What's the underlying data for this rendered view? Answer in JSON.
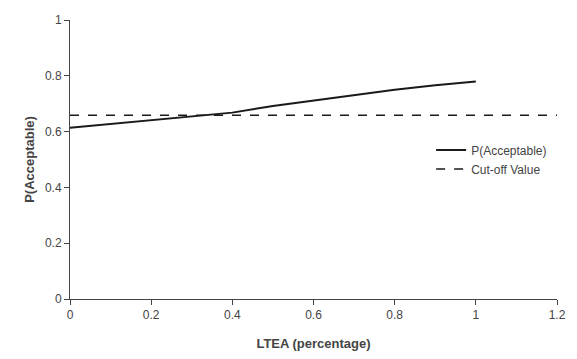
{
  "chart_data": {
    "type": "line",
    "xlabel": "LTEA (percentage)",
    "ylabel": "P(Acceptable)",
    "x": [
      0.0,
      0.1,
      0.2,
      0.3,
      0.4,
      0.5,
      0.6,
      0.7,
      0.8,
      0.9,
      1.0
    ],
    "series": [
      {
        "name": "P(Acceptable)",
        "color": "#1a1a1a",
        "line_style": "solid",
        "values": [
          0.614,
          0.628,
          0.641,
          0.655,
          0.668,
          0.692,
          0.712,
          0.73,
          0.75,
          0.766,
          0.78
        ]
      }
    ],
    "hlines": [
      {
        "name": "Cut-off Value",
        "value": 0.659,
        "color": "#1a1a1a",
        "line_style": "dashed"
      }
    ],
    "xlim": [
      0,
      1.2
    ],
    "ylim": [
      0,
      1
    ],
    "xticks": [
      0,
      0.2,
      0.4,
      0.6,
      0.8,
      1,
      1.2
    ],
    "yticks": [
      0,
      0.2,
      0.4,
      0.6,
      0.8,
      1
    ],
    "grid": false,
    "legend": "center right"
  }
}
